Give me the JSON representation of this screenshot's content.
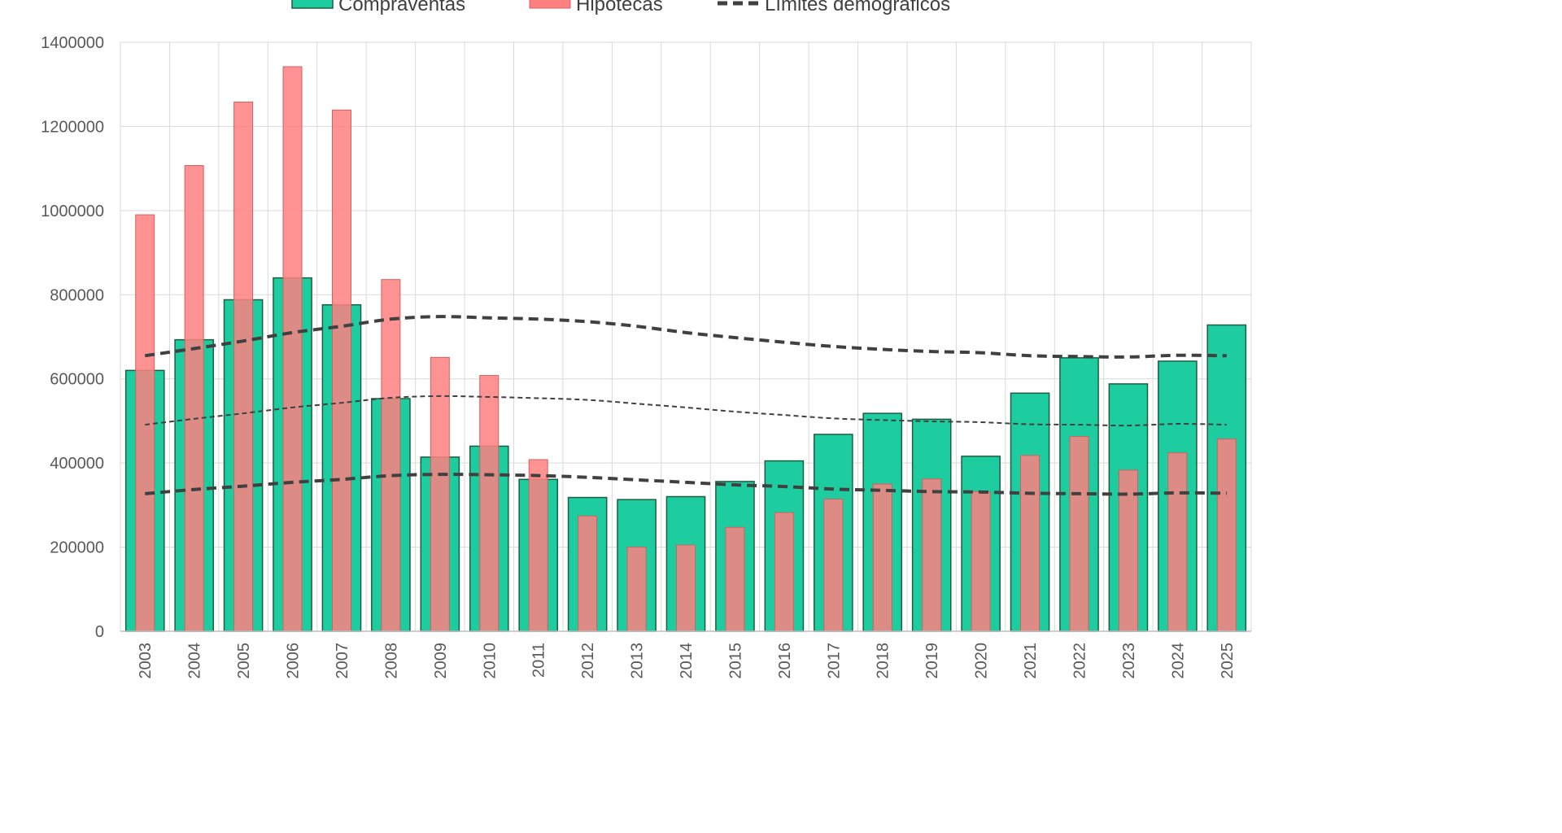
{
  "chart_data": {
    "type": "bar",
    "categories": [
      "2003",
      "2004",
      "2005",
      "2006",
      "2007",
      "2008",
      "2009",
      "2010",
      "2011",
      "2012",
      "2013",
      "2014",
      "2015",
      "2016",
      "2017",
      "2018",
      "2019",
      "2020",
      "2021",
      "2022",
      "2023",
      "2024",
      "2025"
    ],
    "series": [
      {
        "name": "Compraventas",
        "type": "bar",
        "color": "#1dcc9f",
        "values": [
          620000,
          693000,
          788000,
          840000,
          776000,
          553000,
          414000,
          440000,
          361000,
          318000,
          313000,
          320000,
          356000,
          405000,
          468000,
          518000,
          504000,
          416000,
          566000,
          650000,
          588000,
          642000,
          728000
        ]
      },
      {
        "name": "Hipotecas",
        "type": "bar",
        "color": "#ff8080",
        "values": [
          990000,
          1107000,
          1258000,
          1342000,
          1239000,
          836000,
          651000,
          608000,
          408000,
          274000,
          200000,
          205000,
          247000,
          282000,
          314000,
          350000,
          362000,
          332000,
          418000,
          463000,
          383000,
          424000,
          457000
        ]
      },
      {
        "name": "Límites demográficos",
        "type": "line",
        "color": "#404040",
        "style": "dashed",
        "upper": [
          655000,
          672000,
          690000,
          710000,
          725000,
          742000,
          748000,
          745000,
          742000,
          736000,
          725000,
          710000,
          698000,
          687000,
          677000,
          670000,
          665000,
          662000,
          655000,
          653000,
          652000,
          656000,
          655000
        ],
        "mid": [
          491000,
          505000,
          518000,
          532000,
          543000,
          555000,
          559000,
          557000,
          554000,
          550000,
          541000,
          532000,
          522000,
          514000,
          506000,
          502000,
          499000,
          497000,
          492000,
          491000,
          489000,
          493000,
          491000
        ],
        "lower": [
          327000,
          337000,
          345000,
          354000,
          361000,
          370000,
          373000,
          372000,
          370000,
          366000,
          360000,
          354000,
          348000,
          344000,
          338000,
          335000,
          332000,
          331000,
          328000,
          327000,
          326000,
          329000,
          328000
        ]
      }
    ],
    "legend": [
      "Compraventas",
      "Hipotecas",
      "Límites demográficos"
    ],
    "legend_position": "top",
    "ylim": [
      0,
      1400000
    ],
    "yticks": [
      0,
      200000,
      400000,
      600000,
      800000,
      1000000,
      1200000,
      1400000
    ],
    "grid": true
  }
}
